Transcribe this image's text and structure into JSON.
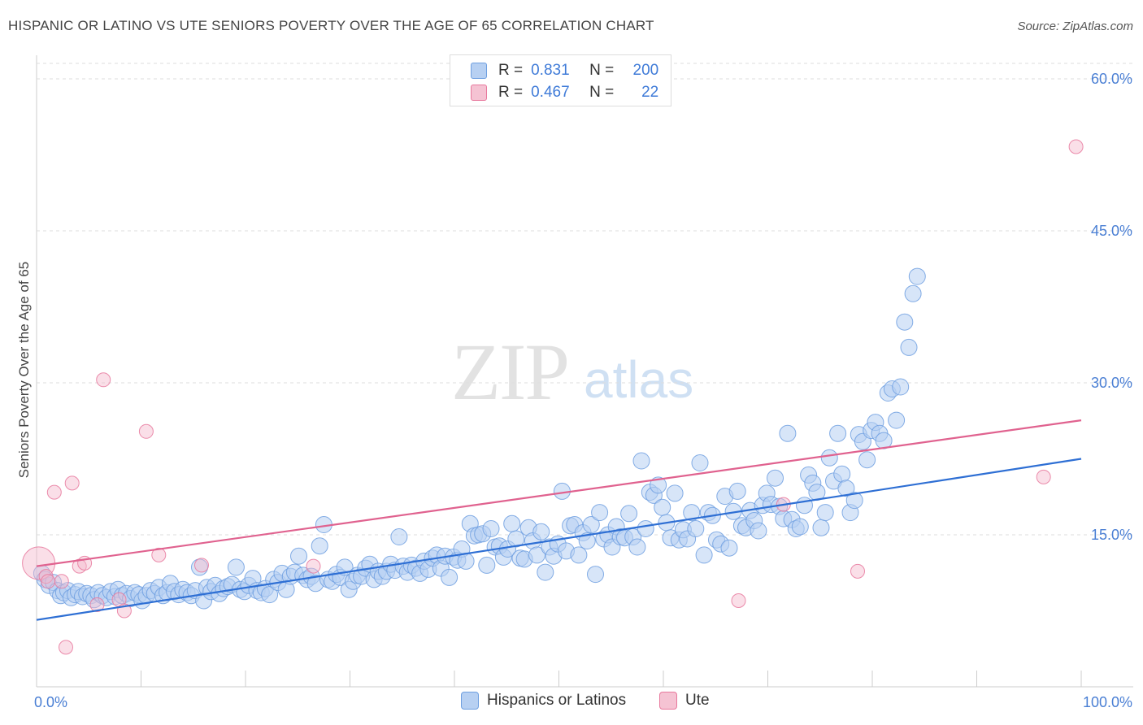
{
  "title": "HISPANIC OR LATINO VS UTE SENIORS POVERTY OVER THE AGE OF 65 CORRELATION CHART",
  "source": "Source: ZipAtlas.com",
  "watermark": {
    "zip": "ZIP",
    "atlas": "atlas"
  },
  "legend": {
    "rows": [
      {
        "r_label": "R =",
        "r_value": "0.831",
        "n_label": "N =",
        "n_value": "200",
        "color": "#a9c6f0"
      },
      {
        "r_label": "R =",
        "r_value": "0.467",
        "n_label": "N =",
        "n_value": "22",
        "color": "#f5b8cb"
      }
    ]
  },
  "bottom_legend": [
    {
      "label": "Hispanics or Latinos",
      "color": "#a9c6f0"
    },
    {
      "label": "Ute",
      "color": "#f5b8cb"
    }
  ],
  "chart_data": {
    "type": "scatter",
    "title": "HISPANIC OR LATINO VS UTE SENIORS POVERTY OVER THE AGE OF 65 CORRELATION CHART",
    "xlabel": "",
    "ylabel": "Seniors Poverty Over the Age of 65",
    "xlim": [
      0,
      100
    ],
    "ylim": [
      0,
      60
    ],
    "x_tick_labels": [
      "0.0%",
      "100.0%"
    ],
    "y_ticks": [
      15,
      30,
      45,
      60
    ],
    "y_tick_labels": [
      "15.0%",
      "30.0%",
      "45.0%",
      "60.0%"
    ],
    "grid": true,
    "series": [
      {
        "name": "Hispanics or Latinos",
        "color": "#6e9fe0",
        "fill": "#b7d0f2",
        "trend": {
          "x": [
            0,
            100
          ],
          "y": [
            6.6,
            22.5
          ]
        },
        "points": [
          [
            0.5,
            11.2
          ],
          [
            0.8,
            10.6
          ],
          [
            1.2,
            10.0
          ],
          [
            1.6,
            10.3
          ],
          [
            2.0,
            9.5
          ],
          [
            2.3,
            9.0
          ],
          [
            2.6,
            9.3
          ],
          [
            3.0,
            9.5
          ],
          [
            3.3,
            8.8
          ],
          [
            3.7,
            9.1
          ],
          [
            4.0,
            9.4
          ],
          [
            4.4,
            8.9
          ],
          [
            4.8,
            9.2
          ],
          [
            5.2,
            9.0
          ],
          [
            5.5,
            8.6
          ],
          [
            5.9,
            9.3
          ],
          [
            6.3,
            9.0
          ],
          [
            6.7,
            8.8
          ],
          [
            7.1,
            9.4
          ],
          [
            7.5,
            8.9
          ],
          [
            7.8,
            9.6
          ],
          [
            8.2,
            9.0
          ],
          [
            8.6,
            9.2
          ],
          [
            9.0,
            8.7
          ],
          [
            9.4,
            9.3
          ],
          [
            9.8,
            9.1
          ],
          [
            10.1,
            8.5
          ],
          [
            10.5,
            9.0
          ],
          [
            10.9,
            9.5
          ],
          [
            11.3,
            9.2
          ],
          [
            11.7,
            9.8
          ],
          [
            12.1,
            9.0
          ],
          [
            12.5,
            9.3
          ],
          [
            12.8,
            10.2
          ],
          [
            13.2,
            9.4
          ],
          [
            13.6,
            9.1
          ],
          [
            14.0,
            9.6
          ],
          [
            14.4,
            9.3
          ],
          [
            14.8,
            9.0
          ],
          [
            15.2,
            9.5
          ],
          [
            15.6,
            11.8
          ],
          [
            16.0,
            8.5
          ],
          [
            16.3,
            9.8
          ],
          [
            16.7,
            9.4
          ],
          [
            17.1,
            10.0
          ],
          [
            17.5,
            9.2
          ],
          [
            17.9,
            9.7
          ],
          [
            18.3,
            9.9
          ],
          [
            18.7,
            10.1
          ],
          [
            19.1,
            11.8
          ],
          [
            19.5,
            9.6
          ],
          [
            19.9,
            9.4
          ],
          [
            20.3,
            10.0
          ],
          [
            20.7,
            10.7
          ],
          [
            21.1,
            9.5
          ],
          [
            21.5,
            9.3
          ],
          [
            21.9,
            9.7
          ],
          [
            22.3,
            9.1
          ],
          [
            22.7,
            10.6
          ],
          [
            23.1,
            10.3
          ],
          [
            23.5,
            11.2
          ],
          [
            23.9,
            9.6
          ],
          [
            24.3,
            10.9
          ],
          [
            24.7,
            11.3
          ],
          [
            25.1,
            12.9
          ],
          [
            25.5,
            11.0
          ],
          [
            25.9,
            10.6
          ],
          [
            26.3,
            10.9
          ],
          [
            26.7,
            10.2
          ],
          [
            27.1,
            13.9
          ],
          [
            27.5,
            16.0
          ],
          [
            27.9,
            10.6
          ],
          [
            28.3,
            10.4
          ],
          [
            28.7,
            11.1
          ],
          [
            29.1,
            10.8
          ],
          [
            29.5,
            11.8
          ],
          [
            29.9,
            9.6
          ],
          [
            30.3,
            10.4
          ],
          [
            30.7,
            11.0
          ],
          [
            31.1,
            10.9
          ],
          [
            31.5,
            11.7
          ],
          [
            31.9,
            12.1
          ],
          [
            32.3,
            10.6
          ],
          [
            32.7,
            11.4
          ],
          [
            33.1,
            10.9
          ],
          [
            33.5,
            11.4
          ],
          [
            33.9,
            12.1
          ],
          [
            34.3,
            11.5
          ],
          [
            34.7,
            14.8
          ],
          [
            35.1,
            11.9
          ],
          [
            35.5,
            11.3
          ],
          [
            35.9,
            12.0
          ],
          [
            36.3,
            11.7
          ],
          [
            36.7,
            11.2
          ],
          [
            37.1,
            12.4
          ],
          [
            37.5,
            11.6
          ],
          [
            37.9,
            12.7
          ],
          [
            38.3,
            13.0
          ],
          [
            38.7,
            11.7
          ],
          [
            39.1,
            12.9
          ],
          [
            39.5,
            10.8
          ],
          [
            39.9,
            12.8
          ],
          [
            40.3,
            12.5
          ],
          [
            40.7,
            13.6
          ],
          [
            41.1,
            12.4
          ],
          [
            41.5,
            16.1
          ],
          [
            41.9,
            14.9
          ],
          [
            42.3,
            15.0
          ],
          [
            42.7,
            15.1
          ],
          [
            43.1,
            12.0
          ],
          [
            43.5,
            15.6
          ],
          [
            43.9,
            13.8
          ],
          [
            44.3,
            13.9
          ],
          [
            44.7,
            12.8
          ],
          [
            45.1,
            13.6
          ],
          [
            45.5,
            16.1
          ],
          [
            45.9,
            14.6
          ],
          [
            46.3,
            12.7
          ],
          [
            46.7,
            12.6
          ],
          [
            47.1,
            15.7
          ],
          [
            47.5,
            14.4
          ],
          [
            47.9,
            13.0
          ],
          [
            48.3,
            15.3
          ],
          [
            48.7,
            11.3
          ],
          [
            49.1,
            13.8
          ],
          [
            49.5,
            12.9
          ],
          [
            49.9,
            14.1
          ],
          [
            50.3,
            19.3
          ],
          [
            50.7,
            13.4
          ],
          [
            51.1,
            15.9
          ],
          [
            51.5,
            16.0
          ],
          [
            51.9,
            13.0
          ],
          [
            52.3,
            15.2
          ],
          [
            52.7,
            14.4
          ],
          [
            53.1,
            16.0
          ],
          [
            53.5,
            11.1
          ],
          [
            53.9,
            17.2
          ],
          [
            54.3,
            14.6
          ],
          [
            54.7,
            15.0
          ],
          [
            55.1,
            13.8
          ],
          [
            55.5,
            15.8
          ],
          [
            55.9,
            14.8
          ],
          [
            56.3,
            14.7
          ],
          [
            56.7,
            17.1
          ],
          [
            57.1,
            14.8
          ],
          [
            57.5,
            13.8
          ],
          [
            57.9,
            22.3
          ],
          [
            58.3,
            15.6
          ],
          [
            58.7,
            19.2
          ],
          [
            59.1,
            18.9
          ],
          [
            59.5,
            19.9
          ],
          [
            59.9,
            17.7
          ],
          [
            60.3,
            16.2
          ],
          [
            60.7,
            14.7
          ],
          [
            61.1,
            19.1
          ],
          [
            61.5,
            14.5
          ],
          [
            61.9,
            15.5
          ],
          [
            62.3,
            14.6
          ],
          [
            62.7,
            17.2
          ],
          [
            63.1,
            15.6
          ],
          [
            63.5,
            22.1
          ],
          [
            63.9,
            13.0
          ],
          [
            64.3,
            17.2
          ],
          [
            64.7,
            16.9
          ],
          [
            65.1,
            14.5
          ],
          [
            65.5,
            14.1
          ],
          [
            65.9,
            18.8
          ],
          [
            66.3,
            13.7
          ],
          [
            66.7,
            17.3
          ],
          [
            67.1,
            19.3
          ],
          [
            67.5,
            15.9
          ],
          [
            67.9,
            15.7
          ],
          [
            68.3,
            17.4
          ],
          [
            68.7,
            16.4
          ],
          [
            69.1,
            15.4
          ],
          [
            69.5,
            17.9
          ],
          [
            69.9,
            19.1
          ],
          [
            70.3,
            18.0
          ],
          [
            70.7,
            20.6
          ],
          [
            71.1,
            17.8
          ],
          [
            71.5,
            16.6
          ],
          [
            71.9,
            25.0
          ],
          [
            72.3,
            16.5
          ],
          [
            72.7,
            15.6
          ],
          [
            73.1,
            15.8
          ],
          [
            73.5,
            17.9
          ],
          [
            73.9,
            20.9
          ],
          [
            74.3,
            20.1
          ],
          [
            74.7,
            19.2
          ],
          [
            75.1,
            15.7
          ],
          [
            75.5,
            17.2
          ],
          [
            75.9,
            22.6
          ],
          [
            76.3,
            20.3
          ],
          [
            76.7,
            25.0
          ],
          [
            77.1,
            21.0
          ],
          [
            77.5,
            19.6
          ],
          [
            77.9,
            17.2
          ],
          [
            78.3,
            18.4
          ],
          [
            78.7,
            24.9
          ],
          [
            79.1,
            24.2
          ],
          [
            79.5,
            22.4
          ],
          [
            79.9,
            25.3
          ],
          [
            80.3,
            26.1
          ],
          [
            80.7,
            25.0
          ],
          [
            81.1,
            24.3
          ],
          [
            81.5,
            29.0
          ],
          [
            81.9,
            29.4
          ],
          [
            82.3,
            26.3
          ],
          [
            82.7,
            29.6
          ],
          [
            83.1,
            36.0
          ],
          [
            83.5,
            33.5
          ],
          [
            83.9,
            38.8
          ],
          [
            84.3,
            40.5
          ]
        ]
      },
      {
        "name": "Ute",
        "color": "#e8799d",
        "fill": "#f5b8cb",
        "trend": {
          "x": [
            0,
            100
          ],
          "y": [
            11.9,
            26.3
          ]
        },
        "points": [
          [
            0.2,
            12.2
          ],
          [
            0.9,
            10.9
          ],
          [
            1.7,
            19.2
          ],
          [
            2.4,
            10.4
          ],
          [
            2.8,
            3.9
          ],
          [
            3.4,
            20.1
          ],
          [
            4.1,
            11.9
          ],
          [
            4.6,
            12.2
          ],
          [
            5.8,
            8.1
          ],
          [
            6.4,
            30.3
          ],
          [
            7.9,
            8.6
          ],
          [
            8.4,
            7.5
          ],
          [
            10.5,
            25.2
          ],
          [
            11.7,
            13.0
          ],
          [
            15.8,
            12.0
          ],
          [
            26.5,
            11.9
          ],
          [
            67.2,
            8.5
          ],
          [
            71.5,
            18.0
          ],
          [
            78.6,
            11.4
          ],
          [
            96.4,
            20.7
          ],
          [
            99.5,
            53.3
          ],
          [
            1.1,
            10.4
          ]
        ]
      }
    ]
  }
}
